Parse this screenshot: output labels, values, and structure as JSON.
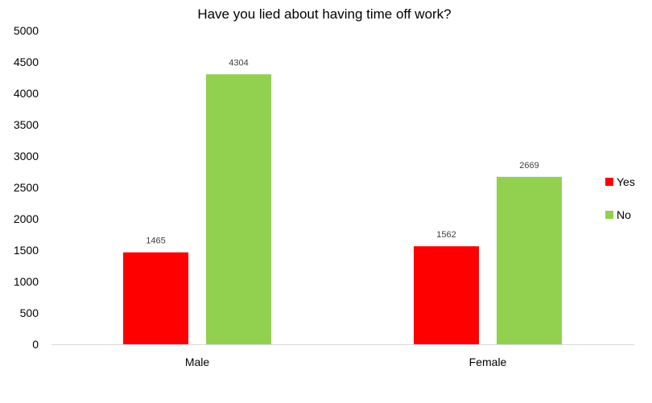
{
  "chart_data": {
    "type": "bar",
    "title": "Have you lied about having time off work?",
    "xlabel": "",
    "ylabel": "",
    "categories": [
      "Male",
      "Female"
    ],
    "series": [
      {
        "name": "Yes",
        "values": [
          1465,
          1562
        ],
        "color": "#ff0000"
      },
      {
        "name": "No",
        "values": [
          4304,
          2669
        ],
        "color": "#92d050"
      }
    ],
    "ylim": [
      0,
      5000
    ],
    "yticks": [
      0,
      500,
      1000,
      1500,
      2000,
      2500,
      3000,
      3500,
      4000,
      4500,
      5000
    ],
    "grid": false,
    "data_labels": true,
    "legend_position": "right"
  }
}
